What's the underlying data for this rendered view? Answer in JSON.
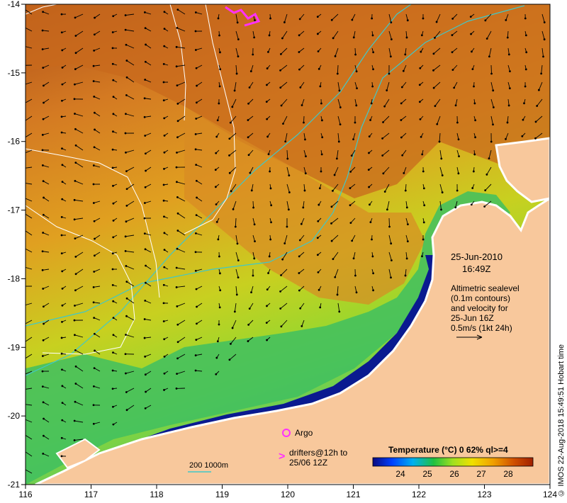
{
  "map": {
    "lon_ticks": [
      "116",
      "117",
      "118",
      "119",
      "120",
      "121",
      "122",
      "123",
      "124"
    ],
    "lat_ticks": [
      "-14",
      "-15",
      "-16",
      "-17",
      "-18",
      "-19",
      "-20",
      "-21"
    ],
    "date": "25-Jun-2010",
    "time": "16:49Z",
    "altimetry_note": [
      "Altimetric sealevel",
      "(0.1m contours)",
      "and velocity for",
      "25-Jun 16Z",
      "0.5m/s (1kt 24h)"
    ],
    "argo_label": "Argo",
    "drifters_label": [
      "drifters@12h to",
      "25/06 12Z"
    ],
    "isobath_label": "200  1000m",
    "colorbar": {
      "title": "Temperature (°C) 0 62% ql>=4",
      "ticks": [
        "24",
        "25",
        "26",
        "27",
        "28"
      ],
      "colors": [
        "#0a0a80",
        "#0040ff",
        "#00b0f0",
        "#20c040",
        "#a0e020",
        "#f0e000",
        "#f0a000",
        "#d05000",
        "#a02000"
      ]
    },
    "credit": "© IMOS 22-Aug-2018 15:49:51 Hobart time",
    "colors": {
      "land": "#f8c89c",
      "ocean_warm": "#d87a20",
      "ocean_cool": "#a8d820",
      "coast_cold": "#0a1a90",
      "isobath": "#40c8c8",
      "marker": "#ff30ff"
    }
  }
}
